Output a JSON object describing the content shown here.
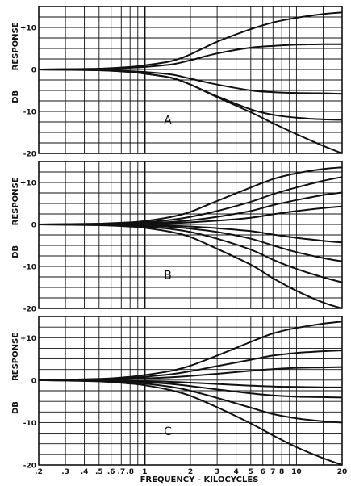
{
  "chart_data": [
    {
      "type": "line",
      "panel_label": "A",
      "ylabel_top": "RESPONSE",
      "ylabel_bottom": "DB",
      "x_scale": "log",
      "xlim": [
        0.2,
        20
      ],
      "ylim": [
        -20,
        15
      ],
      "yticks": [
        {
          "v": 10,
          "label": "+10"
        },
        {
          "v": 0,
          "label": "0"
        },
        {
          "v": -10,
          "label": "-10"
        },
        {
          "v": -20,
          "label": "-20"
        }
      ],
      "grid": true,
      "series": [
        {
          "x": [
            0.2,
            0.5,
            0.8,
            1,
            1.5,
            2,
            3,
            5,
            7,
            10,
            15,
            20
          ],
          "values": [
            0,
            0.2,
            0.6,
            1,
            2,
            3.6,
            6.6,
            9.6,
            11.2,
            12.3,
            13.2,
            13.6
          ]
        },
        {
          "x": [
            0.2,
            0.5,
            0.8,
            1,
            1.5,
            2,
            3,
            5,
            7,
            10,
            15,
            20
          ],
          "values": [
            0,
            0.1,
            0.4,
            0.6,
            1.2,
            2.2,
            3.8,
            5.2,
            5.6,
            5.9,
            6,
            6
          ]
        },
        {
          "x": [
            0.2,
            0.5,
            0.8,
            1,
            1.5,
            2,
            3,
            5,
            7,
            10,
            15,
            20
          ],
          "values": [
            0,
            -0.1,
            -0.4,
            -0.6,
            -1.2,
            -2.2,
            -3.6,
            -5,
            -5.4,
            -5.6,
            -5.7,
            -5.8
          ]
        },
        {
          "x": [
            0.2,
            0.5,
            0.8,
            1,
            1.5,
            2,
            3,
            5,
            7,
            10,
            15,
            20
          ],
          "values": [
            0,
            -0.2,
            -0.6,
            -1,
            -2,
            -3.6,
            -6.4,
            -9.5,
            -10.8,
            -11.5,
            -11.9,
            -12
          ]
        },
        {
          "x": [
            0.2,
            0.5,
            0.8,
            1,
            1.5,
            2,
            3,
            5,
            7,
            10,
            15,
            20
          ],
          "values": [
            0,
            -0.2,
            -0.6,
            -1,
            -2,
            -3.6,
            -6.6,
            -10.2,
            -12.8,
            -15.4,
            -18.2,
            -20
          ]
        }
      ]
    },
    {
      "type": "line",
      "panel_label": "B",
      "ylabel_top": "RESPONSE",
      "ylabel_bottom": "DB",
      "x_scale": "log",
      "xlim": [
        0.2,
        20
      ],
      "ylim": [
        -20,
        15
      ],
      "yticks": [
        {
          "v": 10,
          "label": "+10"
        },
        {
          "v": 0,
          "label": "0"
        },
        {
          "v": -10,
          "label": "-10"
        },
        {
          "v": -20,
          "label": "-20"
        }
      ],
      "grid": true,
      "series": [
        {
          "x": [
            0.2,
            0.5,
            0.8,
            1,
            1.5,
            2,
            3,
            5,
            7,
            10,
            15,
            20
          ],
          "values": [
            0,
            0.2,
            0.5,
            0.8,
            1.8,
            3,
            5.6,
            8.8,
            10.8,
            12.2,
            13.2,
            13.6
          ]
        },
        {
          "x": [
            0.2,
            0.5,
            0.8,
            1,
            1.5,
            2,
            3,
            5,
            7,
            10,
            15,
            20
          ],
          "values": [
            0,
            0.1,
            0.3,
            0.5,
            1.1,
            1.8,
            3.2,
            5.4,
            7.2,
            8.8,
            10.4,
            11.3
          ]
        },
        {
          "x": [
            0.2,
            0.5,
            0.8,
            1,
            1.5,
            2,
            3,
            5,
            7,
            10,
            15,
            20
          ],
          "values": [
            0,
            0.05,
            0.2,
            0.3,
            0.6,
            1,
            1.8,
            3.2,
            4.6,
            5.8,
            7,
            7.6
          ]
        },
        {
          "x": [
            0.2,
            0.5,
            0.8,
            1,
            1.5,
            2,
            3,
            5,
            7,
            10,
            15,
            20
          ],
          "values": [
            0,
            0,
            0.1,
            0.15,
            0.3,
            0.5,
            0.9,
            1.6,
            2.4,
            3.2,
            3.9,
            4.3
          ]
        },
        {
          "x": [
            0.2,
            0.5,
            0.8,
            1,
            1.5,
            2,
            3,
            5,
            7,
            10,
            15,
            20
          ],
          "values": [
            0,
            0,
            -0.1,
            -0.15,
            -0.3,
            -0.5,
            -0.9,
            -1.6,
            -2.4,
            -3.2,
            -3.9,
            -4.3
          ]
        },
        {
          "x": [
            0.2,
            0.5,
            0.8,
            1,
            1.5,
            2,
            3,
            5,
            7,
            10,
            15,
            20
          ],
          "values": [
            0,
            -0.05,
            -0.2,
            -0.3,
            -0.6,
            -1,
            -1.8,
            -3.4,
            -5,
            -6.6,
            -8,
            -8.8
          ]
        },
        {
          "x": [
            0.2,
            0.5,
            0.8,
            1,
            1.5,
            2,
            3,
            5,
            7,
            10,
            15,
            20
          ],
          "values": [
            0,
            -0.1,
            -0.3,
            -0.5,
            -1.1,
            -1.8,
            -3.4,
            -6,
            -8.4,
            -10.6,
            -12.6,
            -13.8
          ]
        },
        {
          "x": [
            0.2,
            0.5,
            0.8,
            1,
            1.5,
            2,
            3,
            5,
            7,
            10,
            15,
            20
          ],
          "values": [
            0,
            -0.2,
            -0.5,
            -0.8,
            -1.8,
            -3,
            -5.8,
            -9.6,
            -12.8,
            -15.8,
            -18.6,
            -20
          ]
        }
      ]
    },
    {
      "type": "line",
      "panel_label": "C",
      "ylabel_top": "RESPONSE",
      "ylabel_bottom": "DB",
      "x_scale": "log",
      "xlim": [
        0.2,
        20
      ],
      "ylim": [
        -20,
        15
      ],
      "yticks": [
        {
          "v": 10,
          "label": "+10"
        },
        {
          "v": 0,
          "label": "0"
        },
        {
          "v": -10,
          "label": "-10"
        },
        {
          "v": -20,
          "label": "-20"
        }
      ],
      "grid": true,
      "series": [
        {
          "x": [
            0.2,
            0.5,
            0.8,
            1,
            1.5,
            2,
            3,
            5,
            7,
            10,
            15,
            20
          ],
          "values": [
            0,
            0.3,
            0.8,
            1.2,
            2.2,
            3.4,
            5.8,
            9,
            11,
            12.3,
            13.3,
            13.8
          ]
        },
        {
          "x": [
            0.2,
            0.5,
            0.8,
            1,
            1.5,
            2,
            3,
            5,
            7,
            10,
            15,
            20
          ],
          "values": [
            0,
            0.2,
            0.5,
            0.8,
            1.4,
            2.1,
            3.3,
            4.8,
            5.8,
            6.4,
            6.8,
            7
          ]
        },
        {
          "x": [
            0.2,
            0.5,
            0.8,
            1,
            1.5,
            2,
            3,
            5,
            7,
            10,
            15,
            20
          ],
          "values": [
            0,
            0.1,
            0.3,
            0.4,
            0.7,
            1,
            1.5,
            2.2,
            2.6,
            2.9,
            3,
            3.1
          ]
        },
        {
          "x": [
            0.2,
            0.5,
            0.8,
            1,
            1.5,
            2,
            3,
            5,
            7,
            10,
            15,
            20
          ],
          "values": [
            0,
            0,
            -0.1,
            -0.2,
            -0.4,
            -0.6,
            -0.9,
            -1.3,
            -1.5,
            -1.6,
            -1.7,
            -1.7
          ]
        },
        {
          "x": [
            0.2,
            0.5,
            0.8,
            1,
            1.5,
            2,
            3,
            5,
            7,
            10,
            15,
            20
          ],
          "values": [
            0,
            -0.1,
            -0.3,
            -0.5,
            -0.9,
            -1.4,
            -2.2,
            -3.1,
            -3.6,
            -3.9,
            -4,
            -4.1
          ]
        },
        {
          "x": [
            0.2,
            0.5,
            0.8,
            1,
            1.5,
            2,
            3,
            5,
            7,
            10,
            15,
            20
          ],
          "values": [
            0,
            -0.2,
            -0.5,
            -0.8,
            -1.6,
            -2.5,
            -4.2,
            -6.5,
            -8,
            -9,
            -9.7,
            -10
          ]
        },
        {
          "x": [
            0.2,
            0.5,
            0.8,
            1,
            1.5,
            2,
            3,
            5,
            7,
            10,
            15,
            20
          ],
          "values": [
            0,
            -0.3,
            -0.8,
            -1.2,
            -2.4,
            -3.7,
            -6.4,
            -10.2,
            -13,
            -15.8,
            -18.4,
            -20
          ]
        }
      ]
    }
  ],
  "x_axis": {
    "ticks": [
      {
        "v": 0.2,
        "label": ".2"
      },
      {
        "v": 0.3,
        "label": ".3"
      },
      {
        "v": 0.4,
        "label": ".4"
      },
      {
        "v": 0.5,
        "label": ".5"
      },
      {
        "v": 0.6,
        "label": ".6"
      },
      {
        "v": 0.7,
        "label": ".7"
      },
      {
        "v": 0.8,
        "label": ".8"
      },
      {
        "v": 1,
        "label": "1"
      },
      {
        "v": 2,
        "label": "2"
      },
      {
        "v": 3,
        "label": "3"
      },
      {
        "v": 4,
        "label": "4"
      },
      {
        "v": 5,
        "label": "5"
      },
      {
        "v": 6,
        "label": "6"
      },
      {
        "v": 7,
        "label": "7"
      },
      {
        "v": 8,
        "label": "8"
      },
      {
        "v": 10,
        "label": "10"
      },
      {
        "v": 20,
        "label": "20"
      }
    ],
    "minor_gridlines": [
      0.9,
      9,
      15
    ],
    "title": "FREQUENCY - KILOCYCLES"
  }
}
